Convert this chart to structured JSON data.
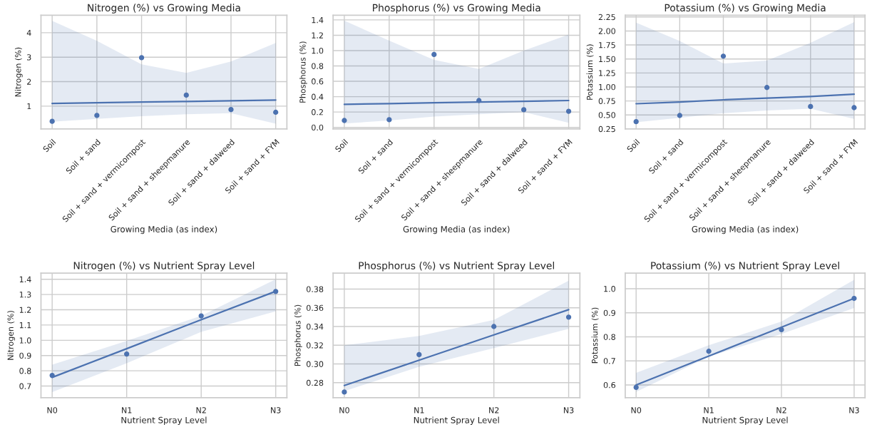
{
  "chart_data": [
    {
      "type": "scatter",
      "title": "Nitrogen (%) vs Growing Media",
      "xlabel": "Growing Media (as index)",
      "ylabel": "Nitrogen (%)",
      "categories": [
        "Soil",
        "Soil + sand",
        "Soil + sand + vermicompost",
        "Soil + sand + sheepmanure",
        "Soil + sand + dalweed",
        "Soil + sand + FYM"
      ],
      "ylim": [
        0.07,
        4.71
      ],
      "yticks": [
        1,
        2,
        3,
        4
      ],
      "grid": true,
      "series": [
        {
          "marker": "circle",
          "color": "#4c72b0",
          "values": [
            0.38,
            0.62,
            2.98,
            1.45,
            0.86,
            0.75
          ]
        },
        {
          "type": "line",
          "marker": "none",
          "color": "#4c72b0",
          "values": [
            1.11,
            1.14,
            1.17,
            1.19,
            1.22,
            1.25
          ],
          "lower": [
            0.36,
            0.48,
            0.59,
            0.67,
            0.71,
            0.28
          ],
          "upper": [
            4.48,
            3.67,
            2.71,
            2.36,
            2.82,
            3.58
          ]
        }
      ]
    },
    {
      "type": "scatter",
      "title": "Phosphorus (%) vs Growing Media",
      "xlabel": "Growing Media (as index)",
      "ylabel": "Phosphorus (%)",
      "categories": [
        "Soil",
        "Soil + sand",
        "Soil + sand + vermicompost",
        "Soil + sand + sheepmanure",
        "Soil + sand + dalweed",
        "Soil + sand + FYM"
      ],
      "ylim": [
        -0.02,
        1.46
      ],
      "yticks": [
        {
          "value": 0,
          "label": "0.0"
        },
        {
          "value": 0.2,
          "label": "0.2"
        },
        {
          "value": 0.4,
          "label": "0.4"
        },
        {
          "value": 0.6,
          "label": "0.6"
        },
        {
          "value": 0.8,
          "label": "0.8"
        },
        {
          "value": 1,
          "label": "1.0"
        },
        {
          "value": 1.2,
          "label": "1.2"
        },
        {
          "value": 1.4,
          "label": "1.4"
        }
      ],
      "grid": true,
      "series": [
        {
          "marker": "circle",
          "color": "#4c72b0",
          "values": [
            0.09,
            0.1,
            0.95,
            0.35,
            0.23,
            0.21
          ]
        },
        {
          "type": "line",
          "marker": "none",
          "color": "#4c72b0",
          "values": [
            0.3,
            0.31,
            0.32,
            0.33,
            0.34,
            0.35
          ],
          "lower": [
            0.05,
            0.09,
            0.14,
            0.17,
            0.2,
            0.06
          ],
          "upper": [
            1.39,
            1.13,
            0.88,
            0.76,
            1.0,
            1.21
          ]
        }
      ]
    },
    {
      "type": "scatter",
      "title": "Potassium (%) vs Growing Media",
      "xlabel": "Growing Media (as index)",
      "ylabel": "Potassium (%)",
      "categories": [
        "Soil",
        "Soil + sand",
        "Soil + sand + vermicompost",
        "Soil + sand + sheepmanure",
        "Soil + sand + dalweed",
        "Soil + sand + FYM"
      ],
      "ylim": [
        0.25,
        2.28
      ],
      "yticks": [
        {
          "value": 0.25,
          "label": "0.25"
        },
        {
          "value": 0.5,
          "label": "0.50"
        },
        {
          "value": 0.75,
          "label": "0.75"
        },
        {
          "value": 1,
          "label": "1.00"
        },
        {
          "value": 1.25,
          "label": "1.25"
        },
        {
          "value": 1.5,
          "label": "1.50"
        },
        {
          "value": 1.75,
          "label": "1.75"
        },
        {
          "value": 2,
          "label": "2.00"
        },
        {
          "value": 2.25,
          "label": "2.25"
        }
      ],
      "grid": true,
      "series": [
        {
          "marker": "circle",
          "color": "#4c72b0",
          "values": [
            0.38,
            0.49,
            1.55,
            0.99,
            0.65,
            0.63
          ]
        },
        {
          "type": "line",
          "marker": "none",
          "color": "#4c72b0",
          "values": [
            0.7,
            0.73,
            0.77,
            0.8,
            0.83,
            0.87
          ],
          "lower": [
            0.37,
            0.45,
            0.53,
            0.58,
            0.61,
            0.43
          ],
          "upper": [
            2.15,
            1.82,
            1.42,
            1.47,
            1.79,
            2.16
          ]
        }
      ]
    },
    {
      "type": "scatter",
      "title": "Nitrogen (%) vs Nutrient Spray Level",
      "xlabel": "Nutrient Spray Level",
      "ylabel": "Nitrogen (%)",
      "categories": [
        "N0",
        "N1",
        "N2",
        "N3"
      ],
      "ylim": [
        0.624,
        1.44
      ],
      "yticks": [
        0.7,
        0.8,
        0.9,
        {
          "value": 1,
          "label": "1.0"
        },
        1.1,
        1.2,
        1.3,
        1.4
      ],
      "grid": true,
      "series": [
        {
          "marker": "circle",
          "color": "#4c72b0",
          "values": [
            0.77,
            0.91,
            1.16,
            1.32
          ]
        },
        {
          "type": "line",
          "marker": "none",
          "color": "#4c72b0",
          "values": [
            0.757,
            0.945,
            1.135,
            1.321
          ],
          "lower": [
            0.66,
            0.85,
            1.055,
            1.19
          ],
          "upper": [
            0.84,
            0.996,
            1.16,
            1.4
          ]
        }
      ]
    },
    {
      "type": "scatter",
      "title": "Phosphorus (%) vs Nutrient Spray Level",
      "xlabel": "Nutrient Spray Level",
      "ylabel": "Phosphorus (%)",
      "categories": [
        "N0",
        "N1",
        "N2",
        "N3"
      ],
      "ylim": [
        0.264,
        0.397
      ],
      "yticks": [
        0.28,
        {
          "value": 0.3,
          "label": "0.30"
        },
        0.32,
        0.34,
        0.36,
        0.38
      ],
      "grid": true,
      "series": [
        {
          "marker": "circle",
          "color": "#4c72b0",
          "values": [
            0.27,
            0.31,
            0.34,
            0.35
          ]
        },
        {
          "type": "line",
          "marker": "none",
          "color": "#4c72b0",
          "values": [
            0.277,
            0.304,
            0.331,
            0.358
          ],
          "lower": [
            0.271,
            0.297,
            0.317,
            0.3375
          ],
          "upper": [
            0.32,
            0.33,
            0.347,
            0.389
          ]
        }
      ]
    },
    {
      "type": "scatter",
      "title": "Potassium (%) vs Nutrient Spray Level",
      "xlabel": "Nutrient Spray Level",
      "ylabel": "Potassium (%)",
      "categories": [
        "N0",
        "N1",
        "N2",
        "N3"
      ],
      "ylim": [
        0.547,
        1.065
      ],
      "yticks": [
        0.6,
        0.7,
        0.8,
        0.9,
        {
          "value": 1,
          "label": "1.0"
        }
      ],
      "grid": true,
      "series": [
        {
          "marker": "circle",
          "color": "#4c72b0",
          "values": [
            0.59,
            0.74,
            0.83,
            0.96
          ]
        },
        {
          "type": "line",
          "marker": "none",
          "color": "#4c72b0",
          "values": [
            0.6,
            0.72,
            0.84,
            0.96
          ],
          "lower": [
            0.571,
            0.718,
            0.812,
            0.92
          ],
          "upper": [
            0.65,
            0.765,
            0.864,
            1.037
          ]
        }
      ]
    }
  ]
}
